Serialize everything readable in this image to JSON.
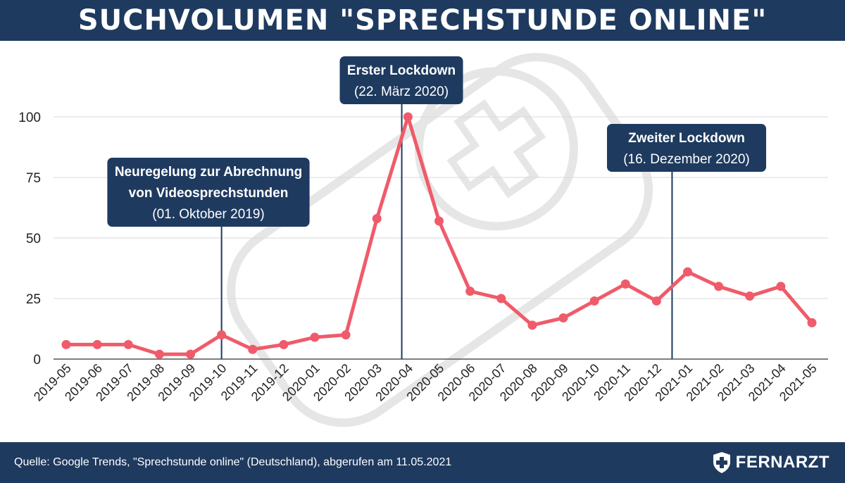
{
  "header": {
    "title": "SUCHVOLUMEN \"SPRECHSTUNDE ONLINE\""
  },
  "footer": {
    "source": "Quelle: Google Trends, \"Sprechstunde online\" (Deutschland), abgerufen am 11.05.2021",
    "logo_text": "FERNARZT",
    "logo_icon": "shield-cross-icon"
  },
  "colors": {
    "brand_navy": "#1e3a5f",
    "line": "#ef5b6a",
    "grid": "#d9d9d9",
    "watermark": "#e6e6e6"
  },
  "chart_data": {
    "type": "line",
    "title": "SUCHVOLUMEN \"SPRECHSTUNDE ONLINE\"",
    "xlabel": "",
    "ylabel": "",
    "ylim": [
      0,
      100
    ],
    "yticks": [
      0,
      25,
      50,
      75,
      100
    ],
    "grid": true,
    "categories": [
      "2019-05",
      "2019-06",
      "2019-07",
      "2019-08",
      "2019-09",
      "2019-10",
      "2019-11",
      "2019-12",
      "2020-01",
      "2020-02",
      "2020-03",
      "2020-04",
      "2020-05",
      "2020-06",
      "2020-07",
      "2020-08",
      "2020-09",
      "2020-10",
      "2020-11",
      "2020-12",
      "2021-01",
      "2021-02",
      "2021-03",
      "2021-04",
      "2021-05"
    ],
    "series": [
      {
        "values": [
          6,
          6,
          6,
          2,
          2,
          10,
          4,
          6,
          9,
          10,
          58,
          100,
          57,
          28,
          25,
          14,
          17,
          24,
          31,
          24,
          36,
          30,
          26,
          30,
          15
        ]
      }
    ],
    "annotations": [
      {
        "at": "2019-10",
        "lines": [
          "Neuregelung zur Abrechnung",
          "von Videosprechstunden"
        ],
        "sub": "(01. Oktober 2019)"
      },
      {
        "at": "2020-03",
        "lines": [
          "Erster Lockdown"
        ],
        "sub": "(22. März 2020)"
      },
      {
        "at": "2020-12",
        "lines": [
          "Zweiter Lockdown"
        ],
        "sub": "(16. Dezember  2020)"
      }
    ]
  }
}
